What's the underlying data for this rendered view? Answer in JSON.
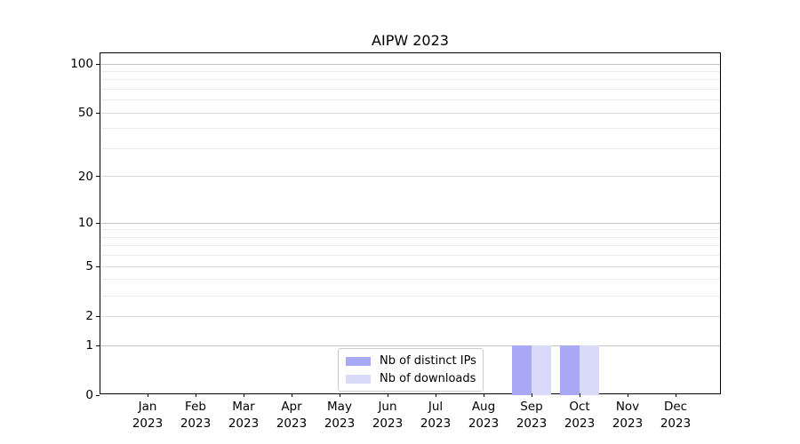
{
  "figure": {
    "title": "AIPW 2023"
  },
  "chart_data": {
    "type": "bar",
    "title": "AIPW 2023",
    "xlabel": "",
    "ylabel": "",
    "grid": "horizontal",
    "x_categories": [
      {
        "month": "Jan",
        "year": "2023"
      },
      {
        "month": "Feb",
        "year": "2023"
      },
      {
        "month": "Mar",
        "year": "2023"
      },
      {
        "month": "Apr",
        "year": "2023"
      },
      {
        "month": "May",
        "year": "2023"
      },
      {
        "month": "Jun",
        "year": "2023"
      },
      {
        "month": "Jul",
        "year": "2023"
      },
      {
        "month": "Aug",
        "year": "2023"
      },
      {
        "month": "Sep",
        "year": "2023"
      },
      {
        "month": "Oct",
        "year": "2023"
      },
      {
        "month": "Nov",
        "year": "2023"
      },
      {
        "month": "Dec",
        "year": "2023"
      }
    ],
    "series": [
      {
        "name": "Nb of distinct IPs",
        "color": "#a8a8f5",
        "values": [
          0,
          0,
          0,
          0,
          0,
          0,
          0,
          0,
          1,
          1,
          0,
          0
        ]
      },
      {
        "name": "Nb of downloads",
        "color": "#d9d9f8",
        "values": [
          0,
          0,
          0,
          0,
          0,
          0,
          0,
          0,
          1,
          1,
          0,
          0
        ]
      }
    ],
    "y_axis": {
      "scale": "log1p",
      "major_ticks": [
        0,
        1,
        2,
        5,
        10,
        20,
        50,
        100
      ],
      "minor_gridlines": [
        3,
        4,
        6,
        7,
        8,
        9,
        30,
        40,
        60,
        70,
        80,
        90
      ],
      "ylim": [
        0,
        116
      ]
    },
    "legend": {
      "position": "lower center"
    },
    "colors": {
      "major_grid": "#c3c3c3",
      "sub_grid": "#dadada",
      "minor_grid": "#ececec",
      "spine": "#000000"
    }
  }
}
